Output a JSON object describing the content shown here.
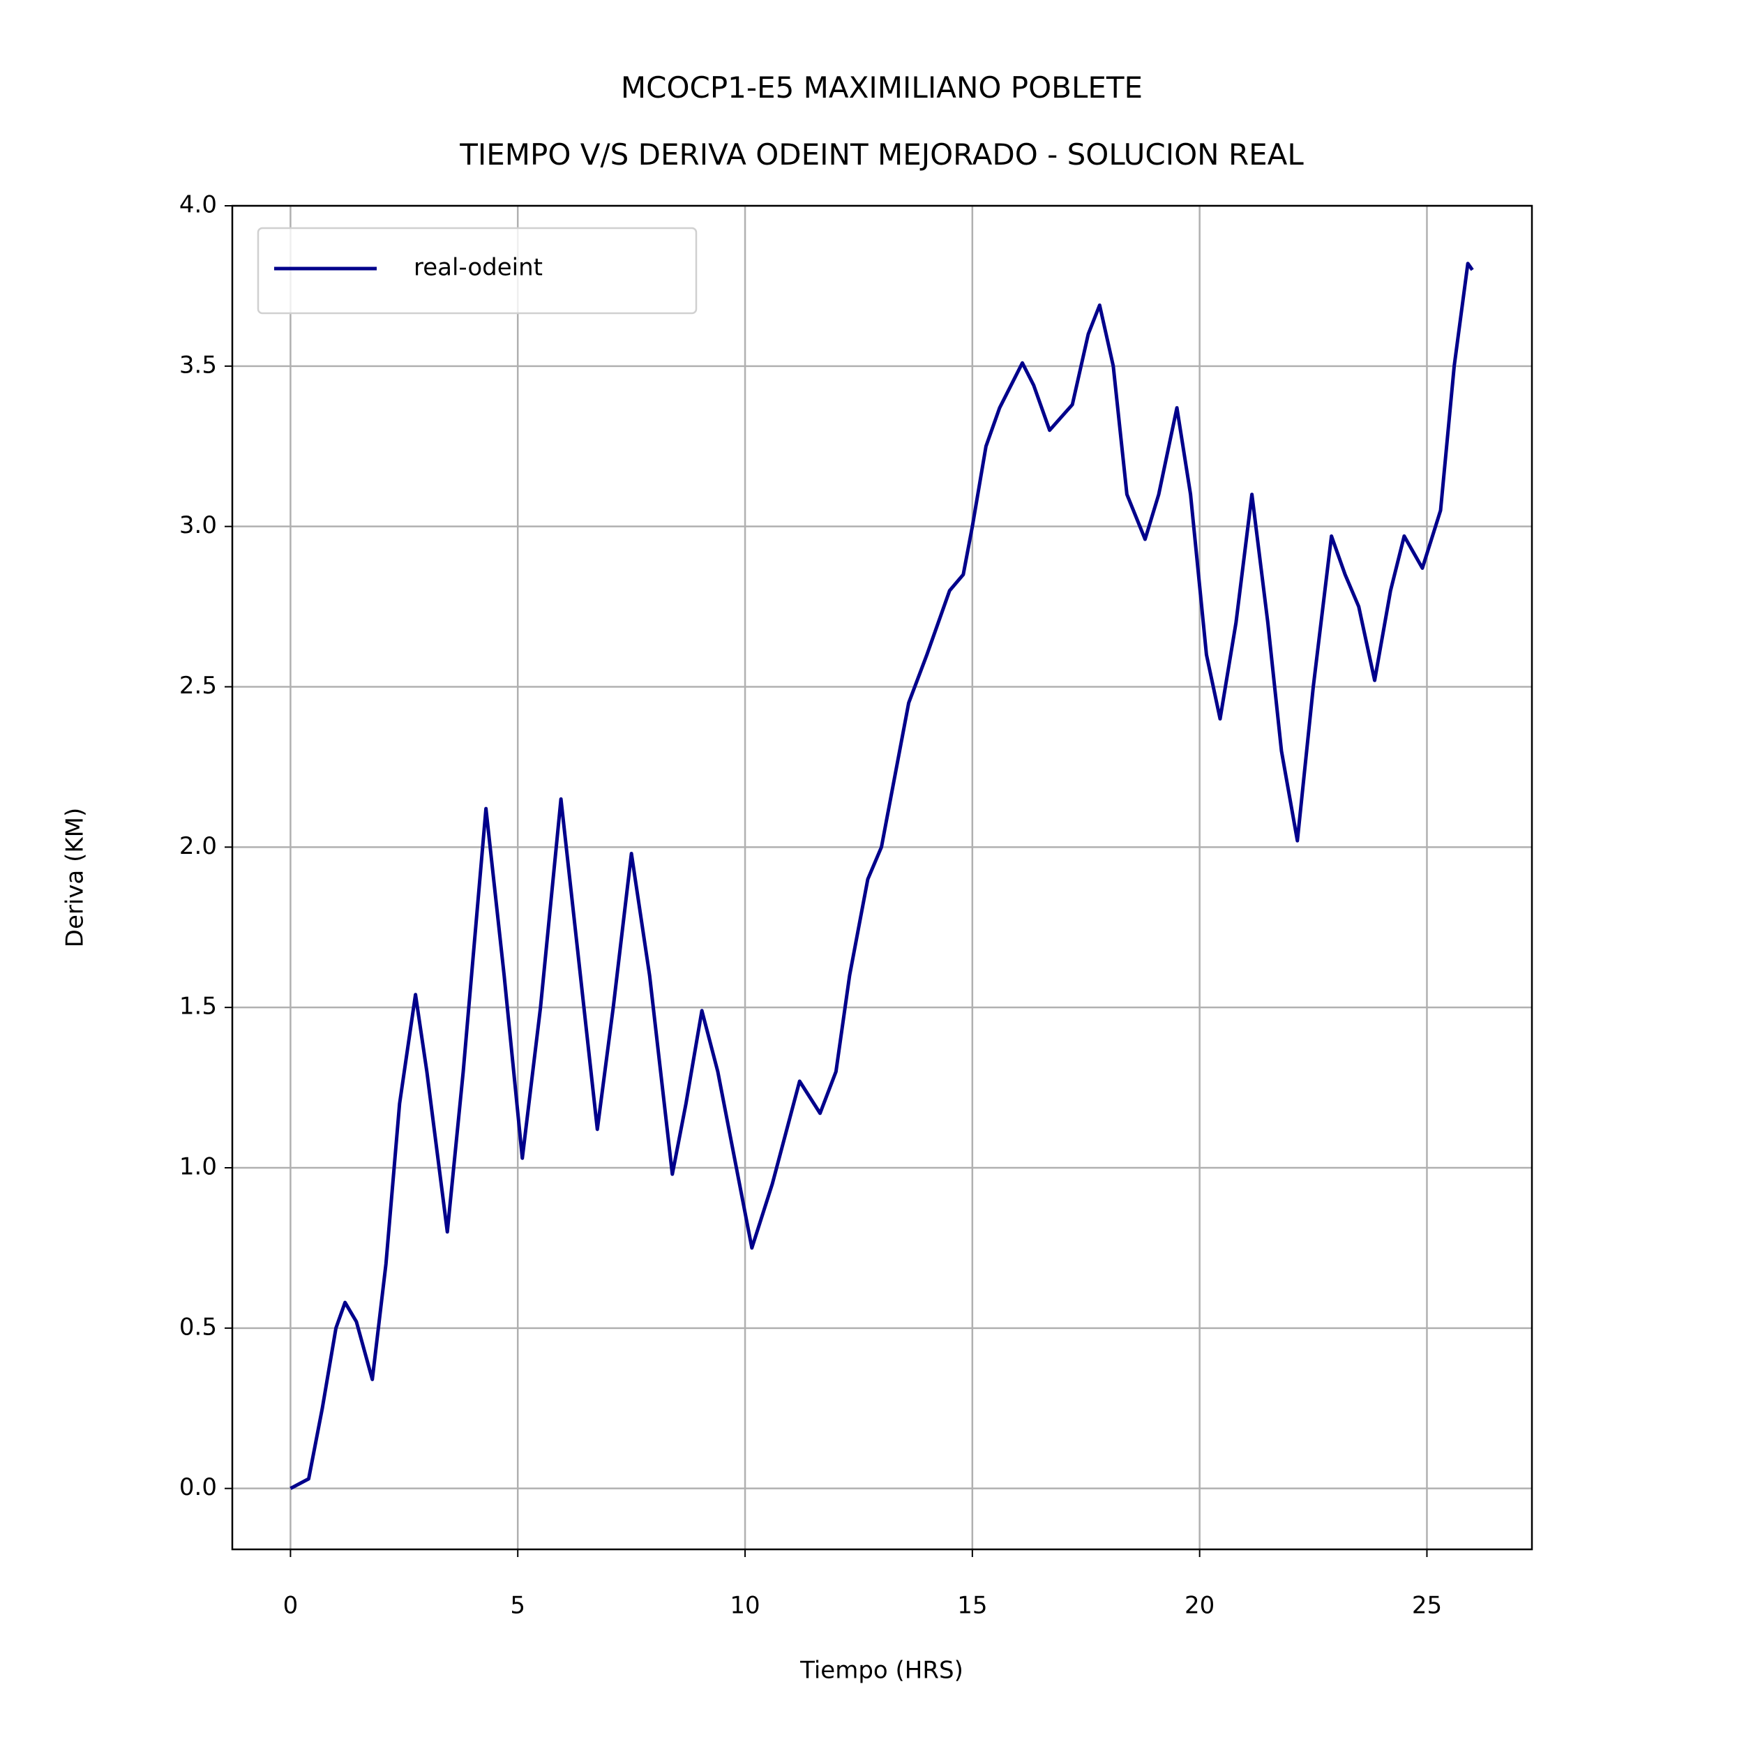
{
  "chart_data": {
    "type": "line",
    "title": "MCOCP1-E5 MAXIMILIANO POBLETE\nTIEMPO V/S DERIVA ODEINT MEJORADO - SOLUCION REAL",
    "x_label": "Tiempo (HRS)",
    "y_label": "Deriva (KM)",
    "xlim": [
      -1.28,
      27.31
    ],
    "ylim": [
      -0.19,
      4.0
    ],
    "xticks": [
      0,
      5,
      10,
      15,
      20,
      25
    ],
    "yticks": [
      {
        "value": 0,
        "label": "0.0"
      },
      0.5,
      {
        "value": 1,
        "label": "1.0"
      },
      1.5,
      {
        "value": 2,
        "label": "2.0"
      },
      2.5,
      {
        "value": 3,
        "label": "3.0"
      },
      3.5,
      {
        "value": 4,
        "label": "4.0"
      }
    ],
    "grid": true,
    "legend": "upper left",
    "x": [
      0,
      0.4,
      0.7,
      1.0,
      1.2,
      1.45,
      1.8,
      2.1,
      2.4,
      2.75,
      3.0,
      3.45,
      3.8,
      4.3,
      4.7,
      5.1,
      5.5,
      5.95,
      6.3,
      6.75,
      7.1,
      7.5,
      7.9,
      8.4,
      8.7,
      9.05,
      9.4,
      10.15,
      10.6,
      11.2,
      11.65,
      12.0,
      12.3,
      12.7,
      13.0,
      13.6,
      14.0,
      14.5,
      14.8,
      15.0,
      15.3,
      15.6,
      16.1,
      16.35,
      16.7,
      17.2,
      17.55,
      17.8,
      18.1,
      18.4,
      18.8,
      19.1,
      19.5,
      19.8,
      20.15,
      20.45,
      20.8,
      21.15,
      21.5,
      21.8,
      22.15,
      22.5,
      22.9,
      23.2,
      23.5,
      23.85,
      24.2,
      24.5,
      24.9,
      25.3,
      25.6,
      25.9,
      26.0
    ],
    "series": [
      {
        "name": "real-odeint",
        "color": "#00008b",
        "values": [
          0,
          0.03,
          0.25,
          0.5,
          0.58,
          0.52,
          0.34,
          0.7,
          1.2,
          1.54,
          1.3,
          0.8,
          1.3,
          2.12,
          1.6,
          1.03,
          1.5,
          2.15,
          1.7,
          1.12,
          1.5,
          1.98,
          1.6,
          0.98,
          1.2,
          1.49,
          1.3,
          0.75,
          0.95,
          1.27,
          1.17,
          1.3,
          1.6,
          1.9,
          2.0,
          2.45,
          2.6,
          2.8,
          2.85,
          3.0,
          3.25,
          3.37,
          3.51,
          3.44,
          3.3,
          3.38,
          3.6,
          3.69,
          3.5,
          3.1,
          2.96,
          3.1,
          3.37,
          3.1,
          2.6,
          2.4,
          2.7,
          3.1,
          2.7,
          2.3,
          2.02,
          2.5,
          2.97,
          2.85,
          2.75,
          2.52,
          2.8,
          2.97,
          2.87,
          3.05,
          3.5,
          3.82,
          3.8
        ]
      }
    ]
  }
}
